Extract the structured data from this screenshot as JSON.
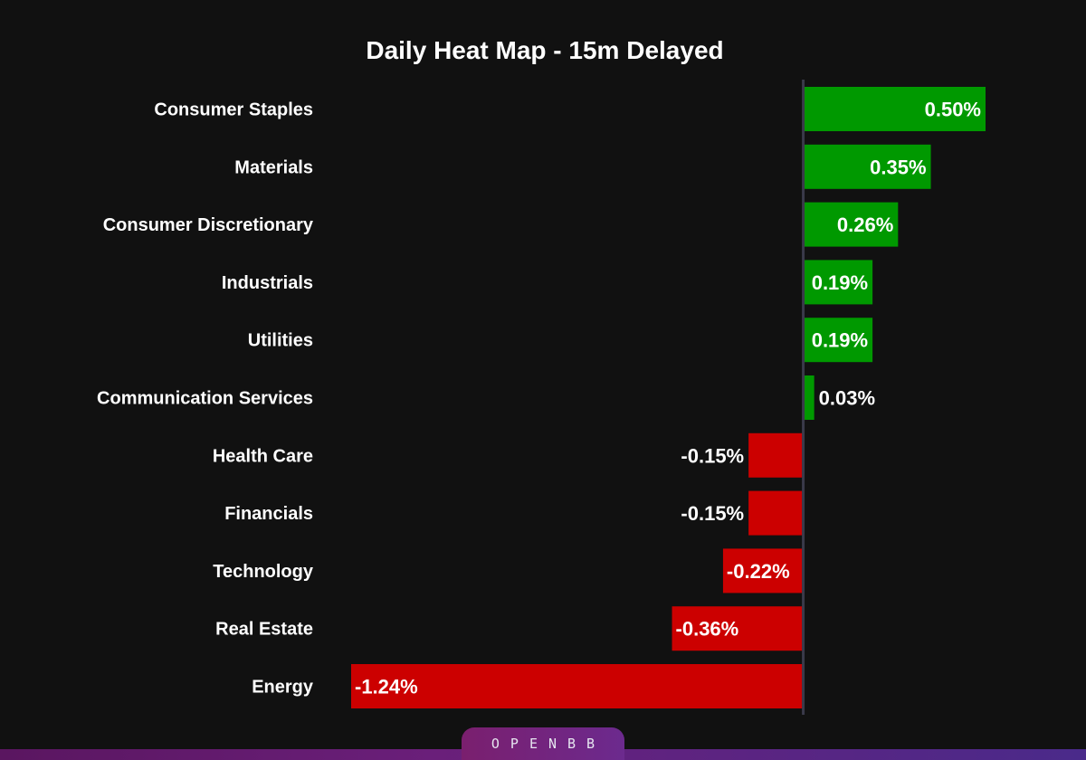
{
  "chart_data": {
    "type": "bar",
    "orientation": "horizontal",
    "title": "Daily Heat Map - 15m Delayed",
    "categories": [
      "Consumer Staples",
      "Materials",
      "Consumer Discretionary",
      "Industrials",
      "Utilities",
      "Communication Services",
      "Health Care",
      "Financials",
      "Technology",
      "Real Estate",
      "Energy"
    ],
    "values": [
      0.5,
      0.35,
      0.26,
      0.19,
      0.19,
      0.03,
      -0.15,
      -0.15,
      -0.22,
      -0.36,
      -1.24
    ],
    "value_labels": [
      "0.50%",
      "0.35%",
      "0.26%",
      "0.19%",
      "0.19%",
      "0.03%",
      "-0.15%",
      "-0.15%",
      "-0.22%",
      "-0.36%",
      "-1.24%"
    ],
    "xlim": [
      -1.24,
      0.5
    ],
    "colors": {
      "positive": "#009900",
      "negative": "#cc0000",
      "axis": "#3a3a4a",
      "background": "#111111"
    },
    "grid": false,
    "legend": "none"
  },
  "branding": {
    "text": "OPENBB"
  }
}
